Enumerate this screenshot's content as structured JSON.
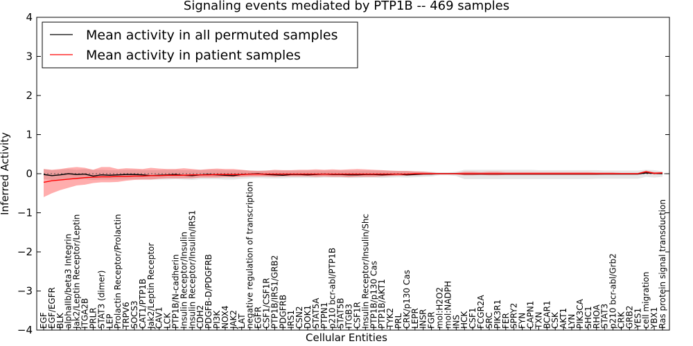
{
  "chart_data": {
    "type": "line",
    "title": "Signaling events mediated by PTP1B -- 469 samples",
    "xlabel": "Cellular Entities",
    "ylabel": "Inferred Activity",
    "ylim": [
      -4,
      4
    ],
    "yticks": [
      -4,
      -3,
      -2,
      -1,
      0,
      1,
      2,
      3,
      4
    ],
    "legend": {
      "position": "top-left",
      "entries": [
        {
          "label": "Mean activity in all permuted samples",
          "color": "#000000"
        },
        {
          "label": "Mean activity in patient samples",
          "color": "#ff0000"
        }
      ]
    },
    "categories": [
      "EGF",
      "EGF/EGFR",
      "BLK",
      "alphaIIb/beta3 Integrin",
      "Jak2/Leptin Receptor/Leptin",
      "ITGA2B",
      "PRLR",
      "STAT3 (dimer)",
      "LEP",
      "Prolactin Receptor/Prolactin",
      "TRPV6",
      "SOCS3",
      "CAT1/PTP1B",
      "Jak2/Leptin Receptor",
      "CAV1",
      "LCK",
      "PTP1B/N-cadherin",
      "Insulin Receptor/Insulin",
      "Insulin Receptor/Insulin/IRS1",
      "CDH2",
      "PDGFB-D/PDGFRB",
      "PI3K",
      "NOX4",
      "JAK2",
      "LAT",
      "negative regulation of transcription",
      "EGFR",
      "CSF1/CSF1R",
      "PTP1B/IRS1/GRB2",
      "PDGFRB",
      "IRS1",
      "CSN2",
      "DOK1",
      "STAT5A",
      "PTPN1",
      "p210 bcr-abl/PTP1B",
      "STAT5B",
      "ITGB3",
      "CSF1R",
      "Insulin Receptor/Insulin/Shc",
      "PTP1B/p130 Cas",
      "PTP1B/AKT1",
      "TYK2",
      "PRL",
      "CRK/p130 Cas",
      "LEPR",
      "INSR",
      "FGR",
      "mol:H2O2",
      "mol:NADPH",
      "INS",
      "HCK",
      "CSF1",
      "FCGR2A",
      "SRC",
      "PIK3R1",
      "FER",
      "SPRY2",
      "FYN",
      "CAPN1",
      "TXN",
      "BCAR1",
      "CSK",
      "AKT1",
      "LYN",
      "PIK3CA",
      "SHC1",
      "RHOA",
      "STAT3",
      "p210 bcr-abl/Grb2",
      "CRK",
      "GRB2",
      "YES1",
      "cell migration",
      "YBX1",
      "Ras protein signal transduction"
    ],
    "series": [
      {
        "name": "Mean activity in all permuted samples",
        "color": "#000000",
        "values": [
          -0.02,
          -0.05,
          -0.03,
          0.0,
          -0.02,
          -0.01,
          -0.06,
          -0.03,
          -0.04,
          -0.03,
          -0.02,
          -0.02,
          -0.03,
          -0.05,
          -0.04,
          -0.03,
          -0.02,
          -0.04,
          -0.05,
          -0.03,
          -0.02,
          -0.03,
          -0.04,
          -0.05,
          -0.02,
          -0.01,
          0.0,
          -0.02,
          -0.03,
          -0.04,
          -0.02,
          -0.02,
          -0.03,
          -0.02,
          -0.01,
          -0.02,
          -0.02,
          -0.03,
          -0.03,
          -0.02,
          -0.02,
          -0.03,
          -0.02,
          -0.01,
          -0.03,
          -0.02,
          -0.01,
          -0.01,
          0.0,
          0.0,
          0.0,
          -0.01,
          -0.01,
          -0.01,
          -0.01,
          -0.01,
          -0.01,
          -0.01,
          -0.01,
          -0.01,
          -0.01,
          -0.01,
          -0.01,
          -0.01,
          -0.01,
          -0.01,
          -0.01,
          -0.01,
          -0.01,
          -0.01,
          -0.01,
          -0.01,
          -0.01,
          0.02,
          0.01,
          0.0
        ],
        "upper": [
          0.12,
          0.09,
          0.1,
          0.12,
          0.1,
          0.12,
          0.1,
          0.1,
          0.09,
          0.09,
          0.1,
          0.1,
          0.09,
          0.09,
          0.09,
          0.1,
          0.1,
          0.09,
          0.09,
          0.1,
          0.1,
          0.1,
          0.09,
          0.09,
          0.09,
          0.08,
          0.08,
          0.08,
          0.08,
          0.08,
          0.08,
          0.08,
          0.08,
          0.08,
          0.08,
          0.08,
          0.08,
          0.08,
          0.08,
          0.08,
          0.08,
          0.08,
          0.07,
          0.07,
          0.07,
          0.06,
          0.06,
          0.05,
          0.03,
          0.03,
          0.05,
          0.1,
          0.1,
          0.1,
          0.1,
          0.1,
          0.1,
          0.1,
          0.1,
          0.1,
          0.09,
          0.09,
          0.09,
          0.09,
          0.09,
          0.09,
          0.09,
          0.09,
          0.08,
          0.08,
          0.08,
          0.08,
          0.08,
          0.1,
          0.09,
          0.06
        ],
        "lower": [
          -0.14,
          -0.16,
          -0.15,
          -0.14,
          -0.15,
          -0.14,
          -0.16,
          -0.15,
          -0.15,
          -0.15,
          -0.15,
          -0.14,
          -0.15,
          -0.15,
          -0.15,
          -0.15,
          -0.14,
          -0.15,
          -0.16,
          -0.14,
          -0.14,
          -0.14,
          -0.15,
          -0.15,
          -0.13,
          -0.12,
          -0.11,
          -0.12,
          -0.12,
          -0.12,
          -0.11,
          -0.11,
          -0.11,
          -0.11,
          -0.1,
          -0.1,
          -0.1,
          -0.11,
          -0.11,
          -0.1,
          -0.1,
          -0.11,
          -0.1,
          -0.09,
          -0.1,
          -0.09,
          -0.08,
          -0.07,
          -0.04,
          -0.04,
          -0.06,
          -0.14,
          -0.14,
          -0.14,
          -0.14,
          -0.14,
          -0.14,
          -0.14,
          -0.14,
          -0.14,
          -0.14,
          -0.14,
          -0.14,
          -0.14,
          -0.14,
          -0.14,
          -0.14,
          -0.13,
          -0.13,
          -0.13,
          -0.13,
          -0.13,
          -0.13,
          -0.08,
          -0.1,
          -0.08
        ]
      },
      {
        "name": "Mean activity in patient samples",
        "color": "#ff0000",
        "values": [
          -0.22,
          -0.18,
          -0.16,
          -0.14,
          -0.12,
          -0.1,
          -0.09,
          -0.08,
          -0.08,
          -0.07,
          -0.07,
          -0.06,
          -0.06,
          -0.05,
          -0.05,
          -0.04,
          -0.04,
          -0.04,
          -0.03,
          -0.03,
          -0.03,
          -0.02,
          -0.02,
          -0.02,
          -0.02,
          -0.01,
          -0.01,
          -0.01,
          -0.01,
          -0.01,
          -0.01,
          -0.01,
          -0.01,
          -0.01,
          -0.01,
          -0.01,
          -0.01,
          -0.01,
          -0.01,
          -0.01,
          -0.01,
          -0.01,
          -0.01,
          -0.01,
          -0.01,
          0.0,
          0.0,
          0.0,
          0.0,
          0.0,
          0.0,
          0.0,
          0.0,
          0.0,
          0.0,
          0.0,
          0.0,
          0.0,
          0.0,
          0.0,
          0.0,
          0.0,
          0.0,
          0.0,
          0.0,
          0.0,
          0.0,
          0.0,
          0.0,
          0.0,
          0.0,
          0.0,
          0.0,
          0.05,
          0.01,
          0.02
        ],
        "upper": [
          0.12,
          0.1,
          0.12,
          0.15,
          0.17,
          0.15,
          0.1,
          0.17,
          0.17,
          0.12,
          0.14,
          0.13,
          0.12,
          0.15,
          0.13,
          0.12,
          0.12,
          0.14,
          0.12,
          0.1,
          0.12,
          0.13,
          0.12,
          0.12,
          0.1,
          0.08,
          0.07,
          0.08,
          0.1,
          0.09,
          0.09,
          0.1,
          0.1,
          0.11,
          0.1,
          0.11,
          0.1,
          0.11,
          0.12,
          0.11,
          0.1,
          0.09,
          0.08,
          0.07,
          0.07,
          0.06,
          0.05,
          0.03,
          0.01,
          0.01,
          0.02,
          0.05,
          0.05,
          0.04,
          0.05,
          0.05,
          0.04,
          0.04,
          0.04,
          0.04,
          0.04,
          0.04,
          0.04,
          0.04,
          0.04,
          0.04,
          0.04,
          0.03,
          0.03,
          0.03,
          0.02,
          0.02,
          0.02,
          0.08,
          0.04,
          0.04
        ],
        "lower": [
          -0.6,
          -0.5,
          -0.42,
          -0.36,
          -0.3,
          -0.28,
          -0.24,
          -0.22,
          -0.22,
          -0.21,
          -0.18,
          -0.16,
          -0.15,
          -0.15,
          -0.13,
          -0.12,
          -0.12,
          -0.12,
          -0.12,
          -0.1,
          -0.1,
          -0.1,
          -0.09,
          -0.09,
          -0.08,
          -0.07,
          -0.07,
          -0.07,
          -0.08,
          -0.07,
          -0.07,
          -0.07,
          -0.07,
          -0.08,
          -0.07,
          -0.08,
          -0.08,
          -0.09,
          -0.08,
          -0.08,
          -0.08,
          -0.07,
          -0.06,
          -0.05,
          -0.05,
          -0.04,
          -0.03,
          -0.02,
          -0.01,
          -0.01,
          -0.02,
          -0.04,
          -0.04,
          -0.03,
          -0.04,
          -0.04,
          -0.03,
          -0.03,
          -0.03,
          -0.03,
          -0.03,
          -0.03,
          -0.03,
          -0.03,
          -0.03,
          -0.03,
          -0.03,
          -0.03,
          -0.02,
          -0.02,
          -0.02,
          -0.02,
          -0.02,
          0.0,
          -0.02,
          -0.01
        ]
      }
    ]
  }
}
